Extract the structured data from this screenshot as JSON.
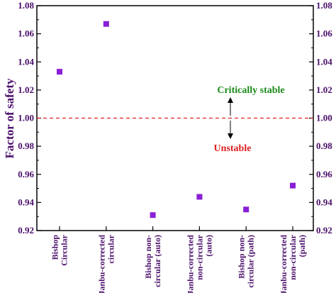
{
  "chart_data": {
    "type": "scatter",
    "title": "",
    "xlabel": "",
    "ylabel": "Factor of safety",
    "ylim": [
      0.92,
      1.08
    ],
    "yticks": [
      "0.92",
      "0.94",
      "0.96",
      "0.98",
      "1.00",
      "1.02",
      "1.04",
      "1.06",
      "1.08"
    ],
    "grid": false,
    "legend": "none",
    "categories": [
      [
        "Bishop",
        "Circular"
      ],
      [
        "Janbu-corrected",
        "circular"
      ],
      [
        "Bishop non-",
        "circular (auto)"
      ],
      [
        "Janbu-corrected",
        "non-circular",
        "(auto)"
      ],
      [
        "Bishop non-",
        "circular (path)"
      ],
      [
        "Janbu-corrected",
        "non-circular",
        "(path)"
      ]
    ],
    "values": [
      1.033,
      1.067,
      0.931,
      0.944,
      0.935,
      0.952
    ],
    "reference_line": {
      "y": 1.0,
      "style": "dashed",
      "color": "#e02020"
    },
    "annotations": [
      {
        "text": "Critically stable",
        "color": "#1a8a1a"
      },
      {
        "text": "Unstable",
        "color": "#e02020"
      }
    ],
    "marker_color": "#8a1fd6",
    "axis_color": "#000000",
    "label_color": "#4b0f6b"
  }
}
